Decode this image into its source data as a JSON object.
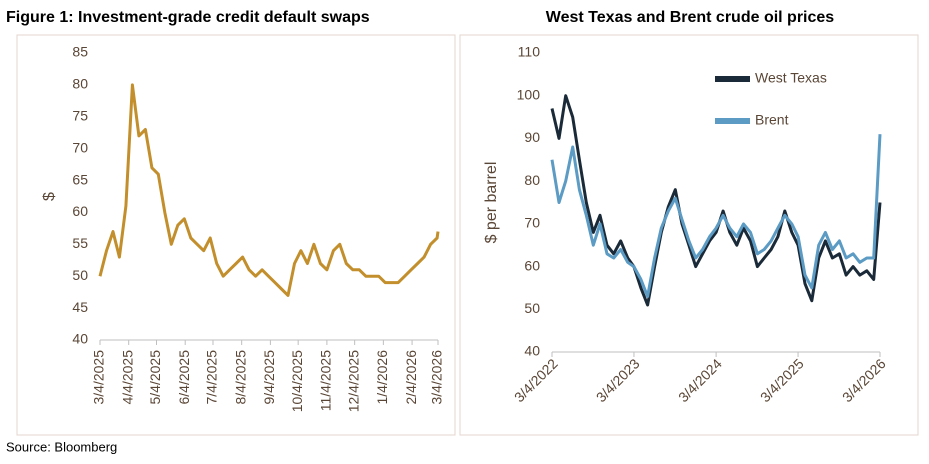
{
  "chart_data": [
    {
      "type": "line",
      "title": "Figure 1: Investment-grade credit default swaps",
      "y_label": "$",
      "color": "#c28f2c",
      "x": [
        "3/4/2025",
        "3/11/2025",
        "3/18/2025",
        "3/25/2025",
        "4/1/2025",
        "4/8/2025",
        "4/15/2025",
        "4/22/2025",
        "4/29/2025",
        "5/6/2025",
        "5/13/2025",
        "5/20/2025",
        "5/27/2025",
        "6/3/2025",
        "6/10/2025",
        "6/17/2025",
        "6/24/2025",
        "7/1/2025",
        "7/8/2025",
        "7/15/2025",
        "7/22/2025",
        "7/29/2025",
        "8/5/2025",
        "8/12/2025",
        "8/19/2025",
        "8/26/2025",
        "9/2/2025",
        "9/9/2025",
        "9/16/2025",
        "9/23/2025",
        "9/30/2025",
        "10/7/2025",
        "10/14/2025",
        "10/21/2025",
        "10/28/2025",
        "11/4/2025",
        "11/11/2025",
        "11/18/2025",
        "11/25/2025",
        "12/2/2025",
        "12/9/2025",
        "12/16/2025",
        "12/23/2025",
        "12/30/2025",
        "1/6/2026",
        "1/13/2026",
        "1/20/2026",
        "1/27/2026",
        "2/3/2026",
        "2/10/2026",
        "2/17/2026",
        "2/24/2026",
        "3/3/2026",
        "3/4/2026"
      ],
      "values": [
        50,
        54,
        57,
        53,
        61,
        80,
        72,
        73,
        67,
        66,
        60,
        55,
        58,
        59,
        56,
        55,
        54,
        56,
        52,
        50,
        51,
        52,
        53,
        51,
        50,
        51,
        50,
        49,
        48,
        47,
        52,
        54,
        52,
        55,
        52,
        51,
        54,
        55,
        52,
        51,
        51,
        50,
        50,
        50,
        49,
        49,
        49,
        50,
        51,
        52,
        53,
        55,
        56,
        57
      ],
      "xlim": [
        "3/4/2025",
        "3/4/2026"
      ],
      "xticks": [
        "3/4/2025",
        "4/4/2025",
        "5/4/2025",
        "6/4/2025",
        "7/4/2025",
        "8/4/2025",
        "9/4/2025",
        "10/4/2025",
        "11/4/2025",
        "12/4/2025",
        "1/4/2026",
        "2/4/2026",
        "3/4/2026"
      ],
      "ylim": [
        40,
        85
      ],
      "yticks": [
        40,
        45,
        50,
        55,
        60,
        65,
        70,
        75,
        80,
        85
      ]
    },
    {
      "type": "line",
      "title": "West Texas and Brent crude oil prices",
      "y_label": "$ per barrel",
      "x": [
        "3/4/2022",
        "4/4/2022",
        "5/4/2022",
        "6/4/2022",
        "7/4/2022",
        "8/4/2022",
        "9/4/2022",
        "10/4/2022",
        "11/4/2022",
        "12/4/2022",
        "1/4/2023",
        "2/4/2023",
        "3/4/2023",
        "4/4/2023",
        "5/4/2023",
        "6/4/2023",
        "7/4/2023",
        "8/4/2023",
        "9/4/2023",
        "10/4/2023",
        "11/4/2023",
        "12/4/2023",
        "1/4/2024",
        "2/4/2024",
        "3/4/2024",
        "4/4/2024",
        "5/4/2024",
        "6/4/2024",
        "7/4/2024",
        "8/4/2024",
        "9/4/2024",
        "10/4/2024",
        "11/4/2024",
        "12/4/2024",
        "1/4/2025",
        "2/4/2025",
        "3/4/2025",
        "4/4/2025",
        "5/4/2025",
        "6/4/2025",
        "7/4/2025",
        "8/4/2025",
        "9/4/2025",
        "10/4/2025",
        "11/4/2025",
        "12/4/2025",
        "1/4/2026",
        "2/4/2026",
        "3/4/2026"
      ],
      "series": [
        {
          "name": "West Texas",
          "color": "#1b2a38",
          "values": [
            97,
            90,
            100,
            95,
            85,
            75,
            68,
            72,
            65,
            63,
            66,
            62,
            60,
            55,
            51,
            60,
            68,
            74,
            78,
            70,
            65,
            60,
            63,
            66,
            68,
            73,
            68,
            65,
            69,
            66,
            60,
            62,
            64,
            67,
            73,
            68,
            65,
            56,
            52,
            62,
            66,
            62,
            63,
            58,
            60,
            58,
            59,
            57,
            75
          ]
        },
        {
          "name": "Brent",
          "color": "#5b9bc4",
          "values": [
            85,
            75,
            80,
            88,
            78,
            72,
            65,
            70,
            63,
            62,
            64,
            61,
            60,
            57,
            53,
            62,
            69,
            73,
            76,
            71,
            66,
            62,
            64,
            67,
            69,
            72,
            69,
            67,
            70,
            68,
            63,
            64,
            66,
            69,
            72,
            70,
            67,
            58,
            55,
            65,
            68,
            64,
            66,
            62,
            63,
            61,
            62,
            62,
            91
          ]
        }
      ],
      "xlim": [
        "3/4/2022",
        "3/4/2026"
      ],
      "xticks": [
        "3/4/2022",
        "3/4/2023",
        "3/4/2024",
        "3/4/2025",
        "3/4/2026"
      ],
      "ylim": [
        40,
        110
      ],
      "yticks": [
        40,
        50,
        60,
        70,
        80,
        90,
        100,
        110
      ]
    }
  ],
  "source": "Source: Bloomberg"
}
